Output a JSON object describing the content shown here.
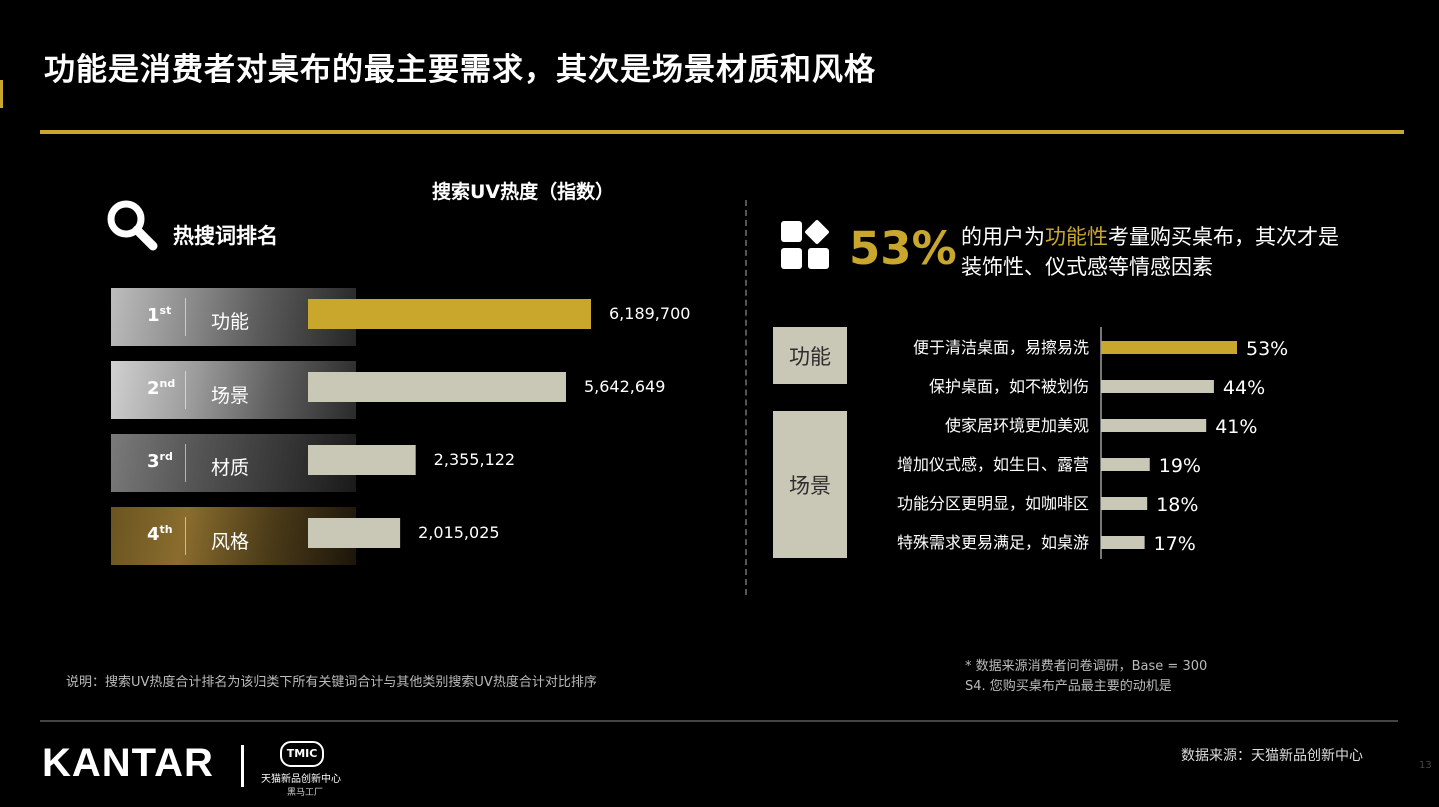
{
  "title": "功能是消费者对桌布的最主要需求，其次是场景材质和风格",
  "left_panel": {
    "chart_title": "搜索UV热度（指数）",
    "heading": "热搜词排名",
    "ranks": [
      {
        "num": "1",
        "suffix": "st",
        "label": "功能"
      },
      {
        "num": "2",
        "suffix": "nd",
        "label": "场景"
      },
      {
        "num": "3",
        "suffix": "rd",
        "label": "材质"
      },
      {
        "num": "4",
        "suffix": "th",
        "label": "风格"
      }
    ],
    "note": "说明：搜索UV热度合计排名为该归类下所有关键词合计与其他类别搜索UV热度合计对比排序"
  },
  "right_panel": {
    "big_percent": "53%",
    "callout_pre": "的用户为",
    "callout_highlight": "功能性",
    "callout_post": "考量购买桌布，其次才是装饰性、仪式感等情感因素",
    "groups": [
      "功能",
      "场景"
    ],
    "footnote_1": "* 数据来源消费者问卷调研，Base = 300",
    "footnote_2": "S4. 您购买桌布产品最主要的动机是"
  },
  "colors": {
    "gold": "#c9a62c",
    "bar_gray": "#c9c7b6",
    "background": "#000000"
  },
  "chart_data": [
    {
      "type": "bar",
      "orientation": "horizontal",
      "title": "搜索UV热度（指数）",
      "categories": [
        "功能",
        "场景",
        "材质",
        "风格"
      ],
      "values": [
        6189700,
        5642649,
        2355122,
        2015025
      ],
      "value_labels": [
        "6,189,700",
        "5,642,649",
        "2,355,122",
        "2,015,025"
      ],
      "highlight_index": 0,
      "xlim": [
        0,
        6189700
      ]
    },
    {
      "type": "bar",
      "orientation": "horizontal",
      "categories": [
        "便于清洁桌面，易擦易洗",
        "保护桌面，如不被划伤",
        "使家居环境更加美观",
        "增加仪式感，如生日、露营",
        "功能分区更明显，如咖啡区",
        "特殊需求更易满足，如桌游"
      ],
      "values": [
        53,
        44,
        41,
        19,
        18,
        17
      ],
      "value_labels": [
        "53%",
        "44%",
        "41%",
        "19%",
        "18%",
        "17%"
      ],
      "groups": [
        {
          "name": "功能",
          "categories": [
            "便于清洁桌面，易擦易洗",
            "保护桌面，如不被划伤"
          ]
        },
        {
          "name": "场景",
          "categories": [
            "使家居环境更加美观",
            "增加仪式感，如生日、露营",
            "功能分区更明显，如咖啡区",
            "特殊需求更易满足，如桌游"
          ]
        }
      ],
      "highlight_index": 0,
      "xlim": [
        0,
        53
      ]
    }
  ],
  "footer": {
    "logo_text": "KANTAR",
    "tmic_badge": "TMIC",
    "tmic_cn": "天猫新品创新中心",
    "tmic_sub": "黑马工厂",
    "source": "数据来源：天猫新品创新中心",
    "page_number": "13"
  }
}
